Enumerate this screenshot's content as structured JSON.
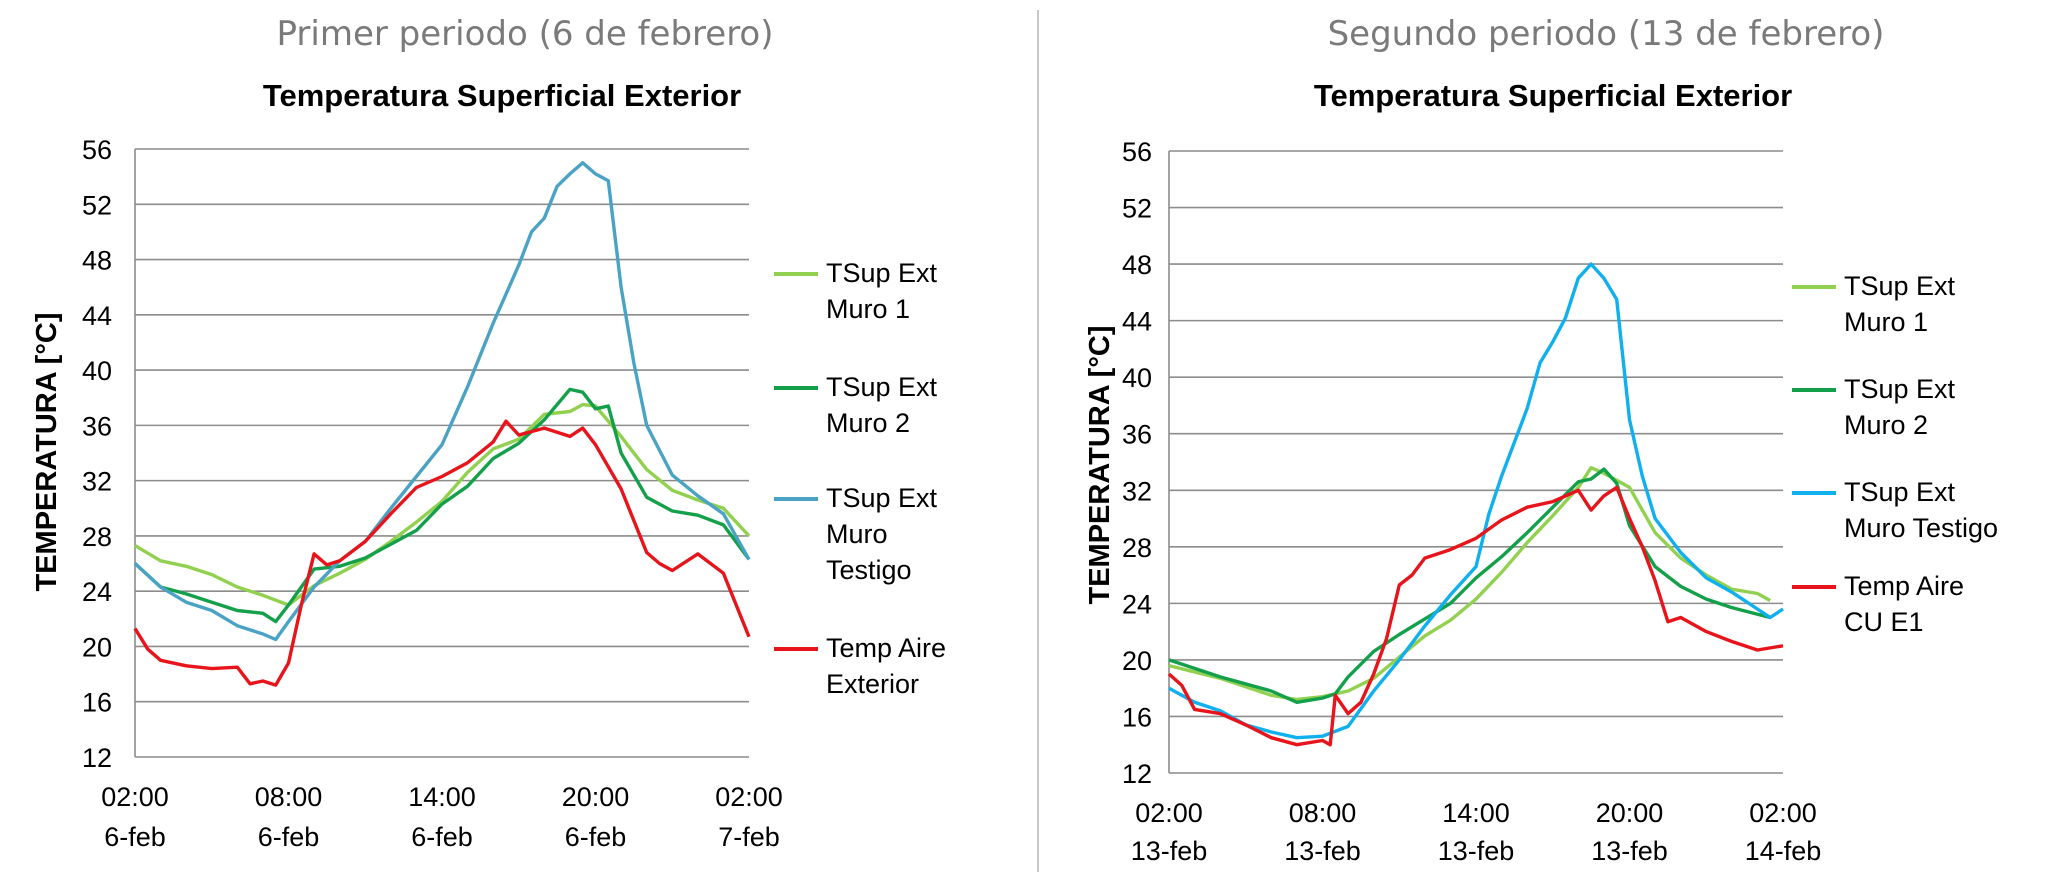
{
  "panels": [
    {
      "subtitle": "Primer periodo (6 de febrero)",
      "title": "Temperatura Superficial Exterior"
    },
    {
      "subtitle": "Segundo periodo (13 de febrero)",
      "title": "Temperatura Superficial Exterior"
    }
  ],
  "colors": {
    "muro1": "#92d050",
    "muro2": "#14a04a",
    "testigo1": "#4aa3c4",
    "testigo2": "#10b0ee",
    "aire": "#e8141b",
    "grid": "#8c8c8c"
  },
  "chart_data": [
    {
      "type": "line",
      "title": "Temperatura Superficial Exterior",
      "ylabel": "TEMPERATURA [°C]",
      "xlabel": "",
      "ylim": [
        12,
        56
      ],
      "yticks": [
        12,
        16,
        20,
        24,
        28,
        32,
        36,
        40,
        44,
        48,
        52,
        56
      ],
      "xlim": [
        0,
        24
      ],
      "x_unit": "hours since 02:00 6-feb",
      "xticks": [
        {
          "x": 0,
          "l1": "02:00",
          "l2": "6-feb"
        },
        {
          "x": 6,
          "l1": "08:00",
          "l2": "6-feb"
        },
        {
          "x": 12,
          "l1": "14:00",
          "l2": "6-feb"
        },
        {
          "x": 18,
          "l1": "20:00",
          "l2": "6-feb"
        },
        {
          "x": 24,
          "l1": "02:00",
          "l2": "7-feb"
        }
      ],
      "grid": "horizontal",
      "legend_position": "right",
      "series": [
        {
          "name": "TSup Ext\nMuro 1",
          "color_key": "muro1",
          "x": [
            0,
            1,
            2,
            3,
            4,
            5,
            6,
            7,
            8,
            9,
            10,
            11,
            12,
            13,
            14,
            15,
            16,
            17,
            17.5,
            18,
            19,
            20,
            21,
            22,
            23,
            24
          ],
          "y": [
            27.3,
            26.2,
            25.8,
            25.2,
            24.3,
            23.7,
            23.0,
            24.4,
            25.3,
            26.3,
            27.6,
            29.0,
            30.5,
            32.6,
            34.3,
            35.0,
            36.8,
            37.0,
            37.5,
            37.4,
            35.2,
            32.8,
            31.3,
            30.6,
            30.0,
            28.0
          ]
        },
        {
          "name": "TSup Ext\nMuro 2",
          "color_key": "muro2",
          "x": [
            0,
            1,
            2,
            3,
            4,
            5,
            5.5,
            6,
            7,
            8,
            9,
            10,
            11,
            12,
            13,
            14,
            15,
            16,
            17,
            17.5,
            18,
            18.5,
            19,
            20,
            21,
            22,
            23,
            24
          ],
          "y": [
            26.0,
            24.3,
            23.8,
            23.2,
            22.6,
            22.4,
            21.8,
            23.0,
            25.6,
            25.8,
            26.4,
            27.4,
            28.4,
            30.3,
            31.6,
            33.6,
            34.7,
            36.4,
            38.6,
            38.4,
            37.2,
            37.4,
            34.0,
            30.8,
            29.8,
            29.5,
            28.8,
            26.3
          ]
        },
        {
          "name": "TSup Ext\nMuro\nTestigo",
          "color_key": "testigo1",
          "x": [
            0,
            1,
            2,
            3,
            4,
            5,
            5.5,
            6,
            7,
            8,
            9,
            10,
            11,
            12,
            13,
            14,
            15,
            15.5,
            16,
            16.5,
            17,
            17.5,
            18,
            18.5,
            19,
            19.5,
            20,
            21,
            22,
            23,
            24
          ],
          "y": [
            26.0,
            24.3,
            23.2,
            22.6,
            21.5,
            20.9,
            20.5,
            21.8,
            24.3,
            26.2,
            27.6,
            30.0,
            32.3,
            34.6,
            38.8,
            43.4,
            47.6,
            50.0,
            51.0,
            53.3,
            54.2,
            55.0,
            54.2,
            53.7,
            46.0,
            40.5,
            36.0,
            32.4,
            30.9,
            29.6,
            26.3
          ]
        },
        {
          "name": "Temp Aire\nExterior",
          "color_key": "aire",
          "x": [
            0,
            0.5,
            1,
            2,
            3,
            4,
            4.5,
            5,
            5.5,
            6,
            6.5,
            7,
            7.5,
            8,
            9,
            10,
            11,
            12,
            13,
            14,
            14.5,
            15,
            16,
            17,
            17.5,
            18,
            19,
            20,
            20.5,
            21,
            22,
            23,
            24
          ],
          "y": [
            21.3,
            19.8,
            19.0,
            18.6,
            18.4,
            18.5,
            17.3,
            17.5,
            17.2,
            18.8,
            23.0,
            26.7,
            25.9,
            26.2,
            27.6,
            29.6,
            31.5,
            32.3,
            33.3,
            34.8,
            36.3,
            35.3,
            35.8,
            35.2,
            35.8,
            34.6,
            31.4,
            26.8,
            26.0,
            25.5,
            26.7,
            25.3,
            20.7
          ]
        }
      ]
    },
    {
      "type": "line",
      "title": "Temperatura Superficial Exterior",
      "ylabel": "TEMPERATURA [°C]",
      "xlabel": "",
      "ylim": [
        12,
        56
      ],
      "yticks": [
        12,
        16,
        20,
        24,
        28,
        32,
        36,
        40,
        44,
        48,
        52,
        56
      ],
      "xlim": [
        0,
        24
      ],
      "x_unit": "hours since 02:00 13-feb",
      "xticks": [
        {
          "x": 0,
          "l1": "02:00",
          "l2": "13-feb"
        },
        {
          "x": 6,
          "l1": "08:00",
          "l2": "13-feb"
        },
        {
          "x": 12,
          "l1": "14:00",
          "l2": "13-feb"
        },
        {
          "x": 18,
          "l1": "20:00",
          "l2": "13-feb"
        },
        {
          "x": 24,
          "l1": "02:00",
          "l2": "14-feb"
        }
      ],
      "grid": "horizontal",
      "legend_position": "right",
      "series": [
        {
          "name": "TSup Ext\nMuro 1",
          "color_key": "muro1",
          "x": [
            0,
            2,
            4,
            5,
            6,
            7,
            8,
            9,
            10,
            11,
            12,
            13,
            14,
            15,
            16,
            16.5,
            17,
            18,
            19,
            20,
            21,
            22,
            23,
            23.5
          ],
          "y": [
            19.6,
            18.7,
            17.5,
            17.2,
            17.4,
            17.8,
            18.7,
            20.2,
            21.7,
            22.8,
            24.3,
            26.2,
            28.3,
            30.2,
            32.2,
            33.6,
            33.2,
            32.2,
            29.0,
            27.2,
            26.0,
            25.0,
            24.7,
            24.2
          ]
        },
        {
          "name": "TSup Ext\nMuro 2",
          "color_key": "muro2",
          "x": [
            0,
            2,
            4,
            5,
            6,
            6.5,
            7,
            8,
            9,
            10,
            11,
            12,
            13,
            14,
            15,
            16,
            16.5,
            17,
            17.5,
            18,
            19,
            20,
            21,
            22,
            23.5
          ],
          "y": [
            20.0,
            18.8,
            17.8,
            17.0,
            17.3,
            17.6,
            18.8,
            20.6,
            21.8,
            22.9,
            24.0,
            25.8,
            27.3,
            29.0,
            30.8,
            32.6,
            32.8,
            33.5,
            32.5,
            29.5,
            26.6,
            25.2,
            24.3,
            23.7,
            23.0
          ]
        },
        {
          "name": "TSup Ext\nMuro Testigo",
          "color_key": "testigo2",
          "x": [
            0,
            1,
            2,
            3,
            4,
            5,
            6,
            7,
            8,
            9,
            10,
            11,
            12,
            12.5,
            13,
            14,
            14.5,
            15,
            15.5,
            16,
            16.5,
            17,
            17.5,
            18,
            18.5,
            19,
            20,
            21,
            22,
            23,
            23.5,
            24
          ],
          "y": [
            18.0,
            17.0,
            16.4,
            15.4,
            14.9,
            14.5,
            14.6,
            15.3,
            17.8,
            20.0,
            22.4,
            24.6,
            26.6,
            30.3,
            33.0,
            37.8,
            41.0,
            42.5,
            44.2,
            47.0,
            48.0,
            47.0,
            45.5,
            37.0,
            33.0,
            30.0,
            27.6,
            25.8,
            24.8,
            23.6,
            23.0,
            23.6
          ]
        },
        {
          "name": "Temp Aire\nCU E1",
          "color_key": "aire",
          "x": [
            0,
            0.5,
            1,
            2,
            3,
            4,
            5,
            6,
            6.3,
            6.5,
            7,
            7.5,
            8,
            8.5,
            9,
            9.5,
            10,
            11,
            12,
            13,
            14,
            15,
            16,
            16.5,
            17,
            17.5,
            18,
            18.5,
            19,
            19.5,
            20,
            21,
            22,
            23,
            24
          ],
          "y": [
            19.0,
            18.2,
            16.5,
            16.2,
            15.4,
            14.5,
            14.0,
            14.3,
            14.0,
            17.5,
            16.2,
            17.0,
            19.0,
            21.5,
            25.3,
            26.0,
            27.2,
            27.8,
            28.6,
            29.9,
            30.8,
            31.2,
            32.0,
            30.6,
            31.6,
            32.2,
            30.0,
            28.0,
            25.6,
            22.7,
            23.0,
            22.0,
            21.3,
            20.7,
            21.0
          ]
        }
      ]
    }
  ]
}
